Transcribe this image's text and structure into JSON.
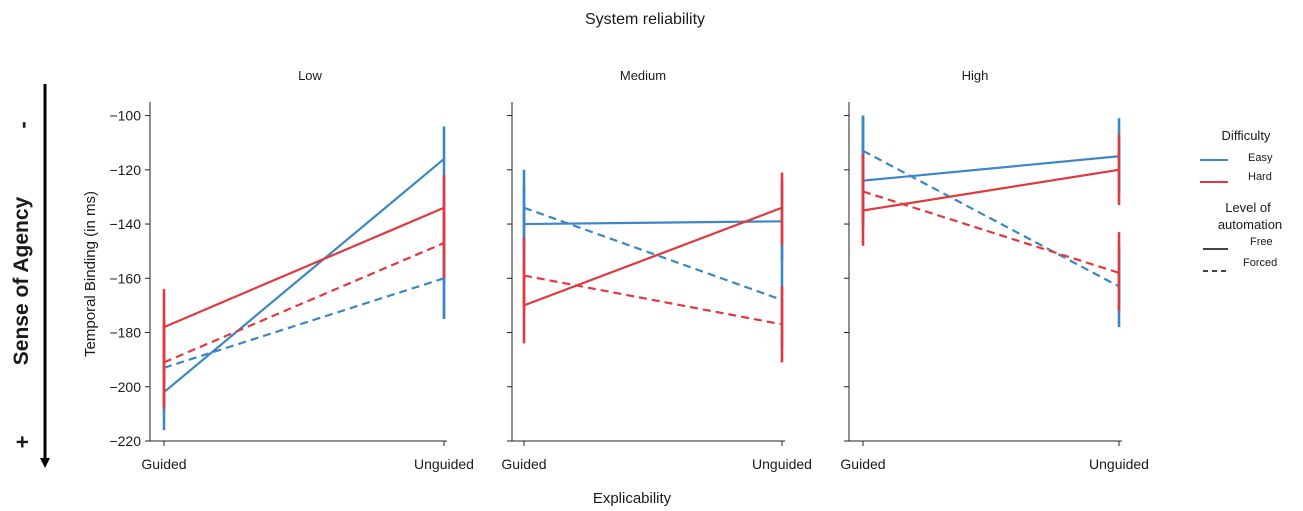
{
  "figure": {
    "suptitle": "System reliability",
    "xlabel": "Explicability",
    "ylabel": "Temporal Binding (in ms)",
    "side_label": "Sense of Agency",
    "side_top_sign": "-",
    "side_bottom_sign": "+"
  },
  "legend": {
    "difficulty_title": "Difficulty",
    "difficulty_items": [
      {
        "label": "Easy",
        "color": "#3d86c6"
      },
      {
        "label": "Hard",
        "color": "#e0393e"
      }
    ],
    "automation_title_line1": "Level of",
    "automation_title_line2": "automation",
    "automation_items": [
      {
        "label": "Free",
        "style": "solid"
      },
      {
        "label": "Forced",
        "style": "dashed"
      }
    ]
  },
  "chart_data": [
    {
      "type": "line",
      "title": "Low",
      "categories": [
        "Guided",
        "Unguided"
      ],
      "ylim": [
        -220,
        -95
      ],
      "yticks": [
        -100,
        -120,
        -140,
        -160,
        -180,
        -200,
        -220
      ],
      "series": [
        {
          "name": "Easy, Free",
          "color": "#3d86c6",
          "dash": false,
          "values": [
            -202,
            -116
          ],
          "err_low": [
            -216,
            -175
          ],
          "err_high": [
            -189,
            -104
          ]
        },
        {
          "name": "Easy, Forced",
          "color": "#3d86c6",
          "dash": true,
          "values": [
            -193,
            -160
          ],
          "err_low": [
            -209,
            -175
          ],
          "err_high": [
            -177,
            -145
          ]
        },
        {
          "name": "Hard, Free",
          "color": "#e0393e",
          "dash": false,
          "values": [
            -178,
            -134
          ],
          "err_low": [
            -208,
            -148
          ],
          "err_high": [
            -164,
            -122
          ]
        },
        {
          "name": "Hard, Forced",
          "color": "#e0393e",
          "dash": true,
          "values": [
            -191,
            -147
          ],
          "err_low": [
            -206,
            -160
          ],
          "err_high": [
            -175,
            -134
          ]
        }
      ]
    },
    {
      "type": "line",
      "title": "Medium",
      "categories": [
        "Guided",
        "Unguided"
      ],
      "ylim": [
        -220,
        -95
      ],
      "series": [
        {
          "name": "Easy, Free",
          "color": "#3d86c6",
          "dash": false,
          "values": [
            -140,
            -139
          ],
          "err_low": [
            -155,
            -153
          ],
          "err_high": [
            -126,
            -124
          ]
        },
        {
          "name": "Easy, Forced",
          "color": "#3d86c6",
          "dash": true,
          "values": [
            -134,
            -168
          ],
          "err_low": [
            -148,
            -186
          ],
          "err_high": [
            -120,
            -148
          ]
        },
        {
          "name": "Hard, Free",
          "color": "#e0393e",
          "dash": false,
          "values": [
            -170,
            -134
          ],
          "err_low": [
            -184,
            -148
          ],
          "err_high": [
            -155,
            -121
          ]
        },
        {
          "name": "Hard, Forced",
          "color": "#e0393e",
          "dash": true,
          "values": [
            -159,
            -177
          ],
          "err_low": [
            -173,
            -191
          ],
          "err_high": [
            -145,
            -163
          ]
        }
      ]
    },
    {
      "type": "line",
      "title": "High",
      "categories": [
        "Guided",
        "Unguided"
      ],
      "ylim": [
        -220,
        -95
      ],
      "series": [
        {
          "name": "Easy, Free",
          "color": "#3d86c6",
          "dash": false,
          "values": [
            -124,
            -115
          ],
          "err_low": [
            -139,
            -129
          ],
          "err_high": [
            -100,
            -101
          ]
        },
        {
          "name": "Easy, Forced",
          "color": "#3d86c6",
          "dash": true,
          "values": [
            -113,
            -163
          ],
          "err_low": [
            -126,
            -178
          ],
          "err_high": [
            -100,
            -148
          ]
        },
        {
          "name": "Hard, Free",
          "color": "#e0393e",
          "dash": false,
          "values": [
            -135,
            -120
          ],
          "err_low": [
            -148,
            -133
          ],
          "err_high": [
            -114,
            -107
          ]
        },
        {
          "name": "Hard, Forced",
          "color": "#e0393e",
          "dash": true,
          "values": [
            -128,
            -158
          ],
          "err_low": [
            -141,
            -172
          ],
          "err_high": [
            -114,
            -143
          ]
        }
      ]
    }
  ]
}
